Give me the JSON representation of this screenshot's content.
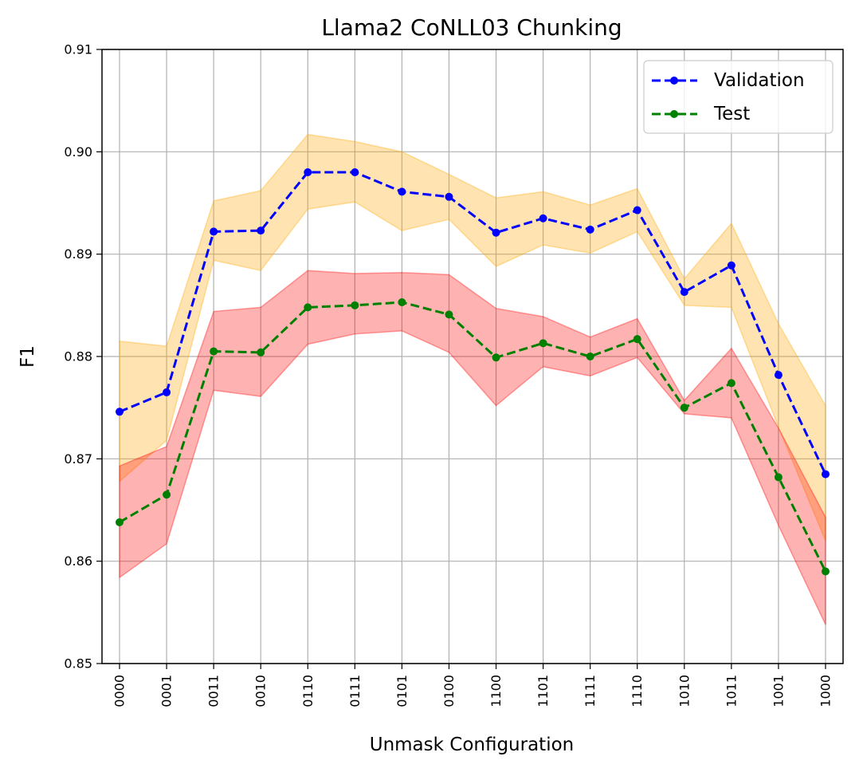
{
  "chart_data": {
    "type": "line",
    "title": "Llama2 CoNLL03 Chunking",
    "xlabel": "Unmask Configuration",
    "ylabel": "F1",
    "ylim": [
      0.85,
      0.91
    ],
    "yticks": [
      "0.85",
      "0.86",
      "0.87",
      "0.88",
      "0.89",
      "0.90",
      "0.91"
    ],
    "ytick_values": [
      0.85,
      0.86,
      0.87,
      0.88,
      0.89,
      0.9,
      0.91
    ],
    "grid": true,
    "legend_position": "top-right",
    "categories": [
      "0000",
      "0001",
      "0011",
      "0010",
      "0110",
      "0111",
      "0101",
      "0100",
      "1100",
      "1101",
      "1111",
      "1110",
      "1010",
      "1011",
      "1001",
      "1000"
    ],
    "series": [
      {
        "name": "Validation",
        "color": "#0000ff",
        "band_color": "#ffa500",
        "values": [
          0.8746,
          0.8765,
          0.8922,
          0.8923,
          0.898,
          0.898,
          0.8961,
          0.8956,
          0.8921,
          0.8935,
          0.8924,
          0.8943,
          0.8863,
          0.8889,
          0.8782,
          0.8685
        ],
        "upper": [
          0.8815,
          0.881,
          0.8952,
          0.8962,
          0.9017,
          0.901,
          0.9,
          0.8978,
          0.8955,
          0.8961,
          0.8948,
          0.8964,
          0.8876,
          0.893,
          0.8832,
          0.8752
        ],
        "lower": [
          0.8678,
          0.8718,
          0.8894,
          0.8884,
          0.8944,
          0.8951,
          0.8923,
          0.8934,
          0.8888,
          0.8909,
          0.8901,
          0.8922,
          0.885,
          0.8848,
          0.8731,
          0.862
        ]
      },
      {
        "name": "Test",
        "color": "#008000",
        "band_color": "#ff0000",
        "values": [
          0.8638,
          0.8665,
          0.8805,
          0.8804,
          0.8848,
          0.885,
          0.8853,
          0.8841,
          0.8799,
          0.8813,
          0.88,
          0.8817,
          0.875,
          0.8774,
          0.8682,
          0.859
        ],
        "upper": [
          0.8693,
          0.8712,
          0.8844,
          0.8848,
          0.8884,
          0.8881,
          0.8882,
          0.888,
          0.8847,
          0.8839,
          0.8819,
          0.8837,
          0.8757,
          0.8808,
          0.873,
          0.8643
        ],
        "lower": [
          0.8584,
          0.8617,
          0.8767,
          0.8761,
          0.8812,
          0.8822,
          0.8825,
          0.8804,
          0.8752,
          0.879,
          0.8781,
          0.8799,
          0.8744,
          0.874,
          0.8635,
          0.8538
        ]
      }
    ]
  }
}
